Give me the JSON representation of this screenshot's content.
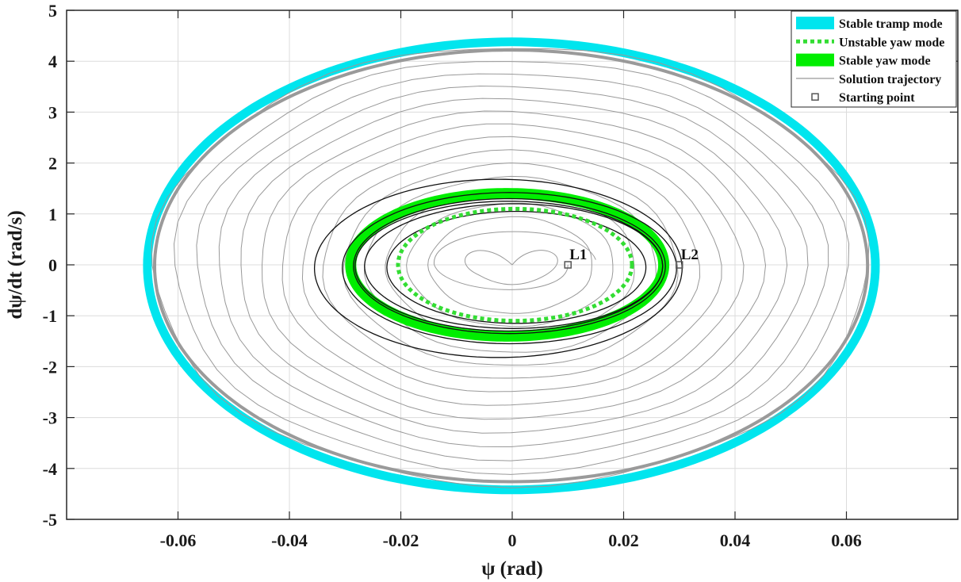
{
  "chart_data": {
    "type": "line",
    "xlabel": "ψ (rad)",
    "ylabel": "dψ/dt (rad/s)",
    "xlim": [
      -0.08,
      0.08
    ],
    "ylim": [
      -5,
      5
    ],
    "x_ticks": [
      -0.06,
      -0.04,
      -0.02,
      0,
      0.02,
      0.04,
      0.06
    ],
    "x_tick_labels": [
      "-0.06",
      "-0.04",
      "-0.02",
      "0",
      "0.02",
      "0.04",
      "0.06"
    ],
    "y_ticks": [
      -5,
      -4,
      -3,
      -2,
      -1,
      0,
      1,
      2,
      3,
      4,
      5
    ],
    "y_tick_labels": [
      "-5",
      "-4",
      "-3",
      "-2",
      "-1",
      "0",
      "1",
      "2",
      "3",
      "4",
      "5"
    ],
    "grid": true,
    "legend_position": "top-right",
    "series": [
      {
        "name": "Stable tramp mode",
        "color": "#00e5ee",
        "style": "solid-thick",
        "shape": "ellipse",
        "x_min": -0.0655,
        "x_max": 0.0652,
        "y_min": -4.42,
        "y_max": 4.38
      },
      {
        "name": "Unstable yaw mode",
        "color": "#33dd33",
        "style": "dotted",
        "shape": "ellipse",
        "x_min": -0.0205,
        "x_max": 0.0215,
        "y_min": -1.1,
        "y_max": 1.1
      },
      {
        "name": "Stable yaw mode",
        "color": "#00ee00",
        "style": "solid-thick",
        "shape": "ellipse",
        "x_min": -0.029,
        "x_max": 0.0272,
        "y_min": -1.4,
        "y_max": 1.4
      },
      {
        "name": "Solution trajectory",
        "color": "#999999",
        "style": "solid-thin",
        "shape": "spirals"
      },
      {
        "name": "Starting point",
        "color": "#555555",
        "style": "square-marker",
        "points": [
          {
            "label": "L1",
            "x": 0.01,
            "y": 0
          },
          {
            "label": "L2",
            "x": 0.03,
            "y": 0
          }
        ]
      }
    ]
  }
}
